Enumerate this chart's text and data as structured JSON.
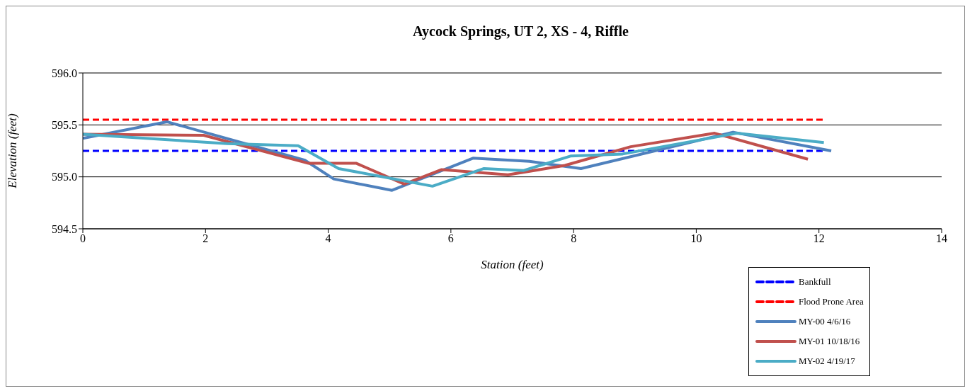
{
  "chart_data": {
    "type": "line",
    "title": "Aycock Springs, UT 2, XS - 4, Riffle",
    "xlabel": "Station (feet)",
    "ylabel": "Elevation (feet)",
    "xlim": [
      0,
      14
    ],
    "xticks": [
      0,
      2,
      4,
      6,
      8,
      10,
      12,
      14
    ],
    "ylim": [
      594.5,
      596.0
    ],
    "yticks": [
      {
        "value": 594.5,
        "label": "594.5"
      },
      {
        "value": 595.0,
        "label": "595.0"
      },
      {
        "value": 595.5,
        "label": "595.5"
      },
      {
        "value": 596.0,
        "label": "596.0"
      }
    ],
    "grid": "y",
    "legend": "bottom right",
    "marker": "none",
    "line_style": "solid",
    "series": [
      {
        "name": "Bankfull",
        "color": "#0000ff",
        "line_style": "dashed",
        "x": [
          0,
          12.1
        ],
        "values": [
          595.25,
          595.25
        ]
      },
      {
        "name": "Flood Prone Area",
        "color": "#ff0000",
        "line_style": "dashed",
        "x": [
          0,
          12.1
        ],
        "values": [
          595.55,
          595.55
        ]
      },
      {
        "name": "MY-00 4/6/16",
        "color": "#4f81bd",
        "x": [
          0,
          1.37,
          3.62,
          4.09,
          5.04,
          6.36,
          7.28,
          8.12,
          10.6,
          12.2
        ],
        "values": [
          595.37,
          595.53,
          595.16,
          594.98,
          594.87,
          595.18,
          595.15,
          595.08,
          595.43,
          595.25
        ]
      },
      {
        "name": "MY-01 10/18/16",
        "color": "#c0504d",
        "x": [
          0,
          1.97,
          3.68,
          4.46,
          5.24,
          5.85,
          6.93,
          7.86,
          8.93,
          10.3,
          11.82
        ],
        "values": [
          595.41,
          595.4,
          595.13,
          595.13,
          594.93,
          595.07,
          595.02,
          595.11,
          595.29,
          595.42,
          595.17
        ]
      },
      {
        "name": "MY-02 4/19/17",
        "color": "#4bacc6",
        "x": [
          0,
          2.35,
          3.51,
          4.17,
          5.7,
          6.54,
          7.18,
          7.95,
          8.8,
          10.66,
          12.08
        ],
        "values": [
          595.41,
          595.32,
          595.3,
          595.08,
          594.91,
          595.08,
          595.06,
          595.2,
          595.22,
          595.42,
          595.33
        ]
      }
    ]
  }
}
